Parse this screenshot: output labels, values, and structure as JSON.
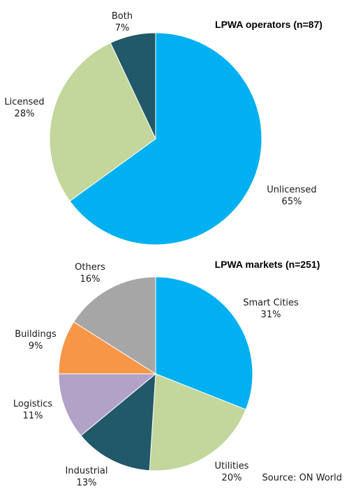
{
  "chart_data": [
    {
      "type": "pie",
      "title": "LPWA operators (n=87)",
      "slices": [
        {
          "label": "Unlicensed",
          "value": 65,
          "display": "65%",
          "color": "#00b0f0"
        },
        {
          "label": "Licensed",
          "value": 28,
          "display": "28%",
          "color": "#c3d69b"
        },
        {
          "label": "Both",
          "value": 7,
          "display": "7%",
          "color": "#215968"
        }
      ]
    },
    {
      "type": "pie",
      "title": "LPWA markets (n=251)",
      "slices": [
        {
          "label": "Smart Cities",
          "value": 31,
          "display": "31%",
          "color": "#00b0f0"
        },
        {
          "label": "Utilities",
          "value": 20,
          "display": "20%",
          "color": "#c3d69b"
        },
        {
          "label": "Industrial",
          "value": 13,
          "display": "13%",
          "color": "#215968"
        },
        {
          "label": "Logistics",
          "value": 11,
          "display": "11%",
          "color": "#b3a2c7"
        },
        {
          "label": "Buildings",
          "value": 9,
          "display": "9%",
          "color": "#f79646"
        },
        {
          "label": "Others",
          "value": 16,
          "display": "16%",
          "color": "#a6a6a6"
        }
      ]
    }
  ],
  "footer": {
    "source": "Source: ON World"
  }
}
